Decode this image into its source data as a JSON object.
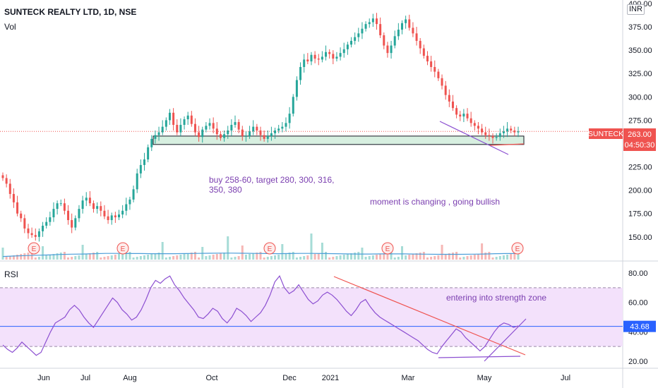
{
  "header": {
    "title": "SUNTECK REALTY LTD, 1D, NSE",
    "volume_label": "Vol",
    "currency": "INR"
  },
  "annotations": {
    "buy_note": "buy 258-60, target 280, 300, 316, 350, 380",
    "momentum_note": "moment is changing , going bullish",
    "strength_note": "entering into strength zone"
  },
  "chart_data": [
    {
      "type": "candlestick",
      "symbol": "SUNTECK",
      "x_ticks": [
        "Jun",
        "Jul",
        "Aug",
        "Oct",
        "Dec",
        "2021",
        "Mar",
        "May",
        "Jul"
      ],
      "y_ticks": [
        150,
        175,
        200,
        225,
        250,
        275,
        300,
        325,
        350,
        375,
        400
      ],
      "ylim": [
        130,
        400
      ],
      "last_price": 263.0,
      "countdown": "04:50:30",
      "earnings_markers": [
        "E",
        "E",
        "E",
        "E",
        "E"
      ],
      "support_zone": [
        249,
        258
      ],
      "colors": {
        "up": "#26a69a",
        "down": "#ef5350",
        "zone": "#d7efe0",
        "trendline": "#8c4fd1",
        "volume_ma": "#4c9ed9"
      },
      "closes": [
        213,
        207,
        196,
        187,
        175,
        170,
        159,
        154,
        152,
        150,
        156,
        162,
        166,
        171,
        180,
        186,
        186,
        178,
        168,
        160,
        170,
        180,
        189,
        192,
        186,
        180,
        183,
        178,
        172,
        168,
        173,
        171,
        174,
        178,
        185,
        190,
        201,
        218,
        227,
        233,
        246,
        255,
        259,
        262,
        268,
        275,
        283,
        270,
        262,
        270,
        276,
        280,
        271,
        262,
        257,
        265,
        269,
        272,
        266,
        260,
        256,
        260,
        264,
        270,
        273,
        265,
        258,
        258,
        263,
        268,
        264,
        259,
        255,
        258,
        261,
        264,
        266,
        268,
        272,
        282,
        300,
        318,
        332,
        340,
        338,
        345,
        341,
        340,
        343,
        348,
        346,
        341,
        343,
        347,
        351,
        356,
        360,
        364,
        368,
        373,
        378,
        380,
        384,
        378,
        366,
        355,
        347,
        355,
        365,
        372,
        379,
        383,
        374,
        368,
        360,
        352,
        344,
        338,
        332,
        327,
        320,
        312,
        302,
        295,
        288,
        281,
        279,
        282,
        277,
        272,
        269,
        266,
        262,
        259,
        258,
        256,
        257,
        261,
        263,
        266,
        264,
        262,
        263
      ],
      "volume_ma": [
        20,
        23,
        26,
        28,
        30,
        33,
        35,
        36,
        38,
        40,
        40,
        39,
        39,
        38,
        38,
        38,
        39,
        40,
        41,
        42,
        42,
        41,
        40,
        39,
        38,
        39,
        40,
        40,
        39,
        38,
        37,
        36,
        36,
        37,
        37,
        37,
        36,
        35,
        34,
        34,
        34,
        35,
        36,
        38,
        39,
        39
      ],
      "rsi": {
        "label": "RSI",
        "value": 43.68,
        "y_ticks": [
          20,
          40,
          60,
          80
        ],
        "ylim": [
          15,
          85
        ],
        "band": [
          30,
          70
        ],
        "colors": {
          "line": "#8c4fd1",
          "band_fill": "#f3e1fb",
          "value_line": "#2962ff",
          "trendline": "#ef5350"
        },
        "values": [
          31,
          28,
          26,
          29,
          33,
          30,
          27,
          24,
          26,
          33,
          40,
          46,
          48,
          50,
          55,
          58,
          55,
          50,
          46,
          43,
          48,
          53,
          58,
          63,
          60,
          55,
          52,
          48,
          50,
          55,
          62,
          70,
          75,
          73,
          76,
          78,
          72,
          68,
          63,
          59,
          55,
          50,
          49,
          52,
          56,
          54,
          49,
          46,
          50,
          56,
          54,
          51,
          47,
          50,
          53,
          58,
          65,
          74,
          78,
          70,
          66,
          68,
          72,
          67,
          62,
          59,
          61,
          65,
          67,
          65,
          62,
          58,
          54,
          51,
          55,
          60,
          62,
          57,
          53,
          50,
          48,
          46,
          44,
          42,
          40,
          38,
          36,
          34,
          31,
          28,
          26,
          25,
          30,
          34,
          38,
          42,
          40,
          36,
          33,
          30,
          27,
          30,
          35,
          40,
          44,
          46,
          45,
          43,
          44
        ]
      }
    }
  ]
}
